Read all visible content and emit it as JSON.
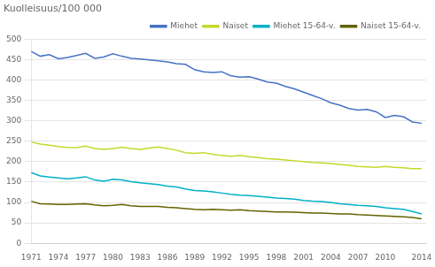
{
  "chart_data": {
    "type": "line",
    "title": "Kuolleisuus/100 000",
    "x": [
      1971,
      1972,
      1973,
      1974,
      1975,
      1976,
      1977,
      1978,
      1979,
      1980,
      1981,
      1982,
      1983,
      1984,
      1985,
      1986,
      1987,
      1988,
      1989,
      1990,
      1991,
      1992,
      1993,
      1994,
      1995,
      1996,
      1997,
      1998,
      1999,
      2000,
      2001,
      2002,
      2003,
      2004,
      2005,
      2006,
      2007,
      2008,
      2009,
      2010,
      2011,
      2012,
      2013,
      2014
    ],
    "series": [
      {
        "name": "Miehet",
        "color": "#4472C4",
        "values": [
          470,
          458,
          462,
          452,
          455,
          460,
          465,
          453,
          456,
          464,
          458,
          453,
          451,
          449,
          447,
          444,
          440,
          438,
          425,
          420,
          418,
          420,
          410,
          407,
          408,
          402,
          395,
          392,
          384,
          378,
          370,
          362,
          354,
          344,
          338,
          330,
          326,
          328,
          322,
          308,
          313,
          310,
          297,
          294
        ]
      },
      {
        "name": "Naiset",
        "color": "#C5D928",
        "values": [
          248,
          243,
          240,
          237,
          235,
          234,
          238,
          232,
          230,
          232,
          235,
          232,
          230,
          233,
          236,
          232,
          228,
          222,
          220,
          222,
          218,
          215,
          213,
          215,
          212,
          210,
          207,
          206,
          204,
          202,
          200,
          198,
          197,
          195,
          193,
          191,
          188,
          187,
          186,
          188,
          186,
          185,
          183,
          183
        ]
      },
      {
        "name": "Miehet 15-64-v.",
        "color": "#00B0C8",
        "values": [
          173,
          165,
          162,
          160,
          158,
          160,
          163,
          155,
          152,
          157,
          155,
          151,
          148,
          146,
          144,
          140,
          138,
          133,
          129,
          128,
          126,
          123,
          120,
          118,
          117,
          115,
          113,
          111,
          110,
          108,
          105,
          103,
          102,
          100,
          97,
          95,
          93,
          92,
          90,
          87,
          85,
          83,
          78,
          72
        ]
      },
      {
        "name": "Naiset 15-64-v.",
        "color": "#636300",
        "values": [
          103,
          97,
          96,
          95,
          95,
          96,
          97,
          94,
          92,
          93,
          95,
          92,
          90,
          90,
          90,
          88,
          87,
          85,
          83,
          82,
          83,
          82,
          81,
          82,
          80,
          79,
          78,
          77,
          77,
          76,
          75,
          74,
          74,
          73,
          72,
          72,
          70,
          69,
          68,
          67,
          66,
          65,
          63,
          60
        ]
      }
    ],
    "xlim": [
      1971,
      2014.5
    ],
    "xticks": [
      1971,
      1974,
      1977,
      1980,
      1983,
      1986,
      1989,
      1992,
      1995,
      1998,
      2001,
      2004,
      2007,
      2010,
      2014
    ],
    "ylim": [
      0,
      500
    ],
    "yticks": [
      0,
      50,
      100,
      150,
      200,
      250,
      300,
      350,
      400,
      450,
      500
    ],
    "grid": "y",
    "legend": "upper right"
  }
}
